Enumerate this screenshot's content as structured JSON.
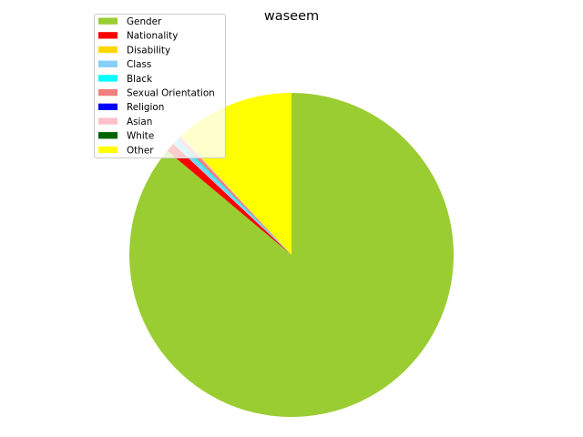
{
  "chart_data": {
    "type": "pie",
    "title": "waseem",
    "start_angle_deg": 90,
    "direction": "clockwise",
    "legend_position": "upper-left",
    "categories": [
      "Gender",
      "Nationality",
      "Disability",
      "Class",
      "Black",
      "Sexual Orientation",
      "Religion",
      "Asian",
      "White",
      "Other"
    ],
    "values": [
      86.1,
      0.9,
      0.0,
      0.4,
      0.2,
      0.4,
      0.0,
      0.1,
      0.0,
      11.9
    ],
    "colors": [
      "#9acd32",
      "#ff0000",
      "#ffd700",
      "#87cefa",
      "#00ffff",
      "#f08080",
      "#0000ff",
      "#ffc0cb",
      "#006400",
      "#ffff00"
    ]
  }
}
